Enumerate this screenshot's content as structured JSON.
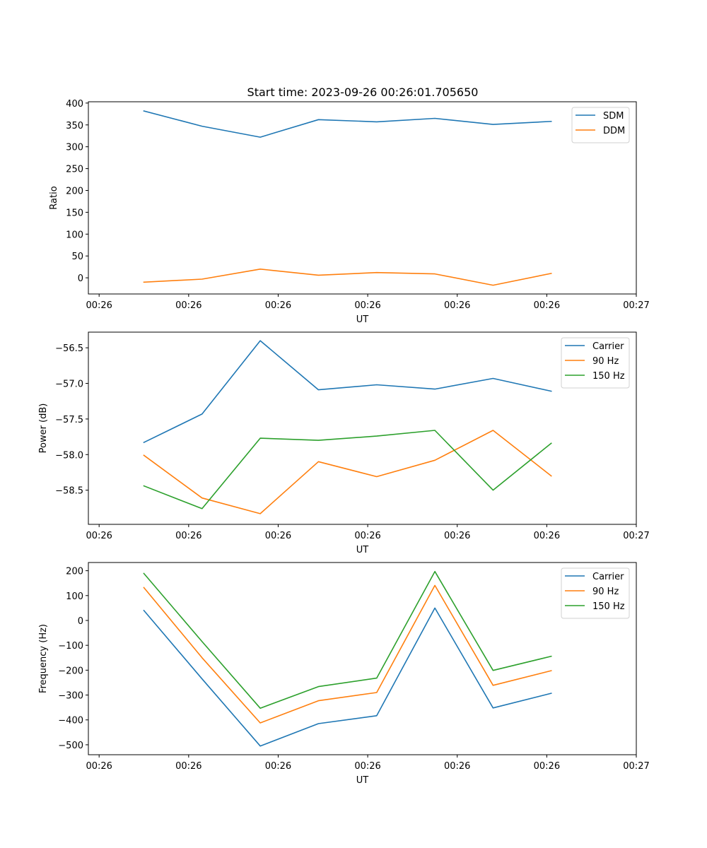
{
  "title": "Start time: 2023-09-26 00:26:01.705650",
  "colors": {
    "blue": "#1f77b4",
    "orange": "#ff7f0e",
    "green": "#2ca02c"
  },
  "chart_data": [
    {
      "type": "line",
      "xlabel": "UT",
      "ylabel": "Ratio",
      "xlim": [
        -0.12,
        6.0
      ],
      "ylim": [
        -37,
        403
      ],
      "yticks": [
        0,
        50,
        100,
        150,
        200,
        250,
        300,
        350,
        400
      ],
      "ytick_labels": [
        "0",
        "50",
        "100",
        "150",
        "200",
        "250",
        "300",
        "350",
        "400"
      ],
      "xticks": [
        0,
        1,
        2,
        3,
        4,
        5,
        6
      ],
      "xtick_labels": [
        "00:26",
        "00:26",
        "00:26",
        "00:26",
        "00:26",
        "00:26",
        "00:27"
      ],
      "x": [
        0.5,
        1.15,
        1.8,
        2.45,
        3.1,
        3.75,
        4.4,
        5.05
      ],
      "legend": "top-right",
      "series": [
        {
          "name": "SDM",
          "color": "#1f77b4",
          "values": [
            382,
            347,
            322,
            362,
            357,
            365,
            351,
            358
          ]
        },
        {
          "name": "DDM",
          "color": "#ff7f0e",
          "values": [
            -10,
            -3,
            20,
            6,
            12,
            9,
            -17,
            10
          ]
        }
      ]
    },
    {
      "type": "line",
      "xlabel": "UT",
      "ylabel": "Power (dB)",
      "xlim": [
        -0.12,
        6.0
      ],
      "ylim": [
        -58.98,
        -56.28
      ],
      "yticks": [
        -58.5,
        -58.0,
        -57.5,
        -57.0,
        -56.5
      ],
      "ytick_labels": [
        "−58.5",
        "−58.0",
        "−57.5",
        "−57.0",
        "−56.5"
      ],
      "xticks": [
        0,
        1,
        2,
        3,
        4,
        5,
        6
      ],
      "xtick_labels": [
        "00:26",
        "00:26",
        "00:26",
        "00:26",
        "00:26",
        "00:26",
        "00:27"
      ],
      "x": [
        0.5,
        1.15,
        1.8,
        2.45,
        3.1,
        3.75,
        4.4,
        5.05
      ],
      "legend": "top-right",
      "series": [
        {
          "name": "Carrier",
          "color": "#1f77b4",
          "values": [
            -57.83,
            -57.43,
            -56.4,
            -57.09,
            -57.02,
            -57.08,
            -56.93,
            -57.11
          ]
        },
        {
          "name": "90 Hz",
          "color": "#ff7f0e",
          "values": [
            -58.01,
            -58.61,
            -58.83,
            -58.1,
            -58.31,
            -58.08,
            -57.66,
            -58.3
          ]
        },
        {
          "name": "150 Hz",
          "color": "#2ca02c",
          "values": [
            -58.44,
            -58.76,
            -57.77,
            -57.8,
            -57.74,
            -57.66,
            -58.5,
            -57.84
          ]
        }
      ]
    },
    {
      "type": "line",
      "xlabel": "UT",
      "ylabel": "Frequency (Hz)",
      "xlim": [
        -0.12,
        6.0
      ],
      "ylim": [
        -540,
        233
      ],
      "yticks": [
        -500,
        -400,
        -300,
        -200,
        -100,
        0,
        100,
        200
      ],
      "ytick_labels": [
        "−500",
        "−400",
        "−300",
        "−200",
        "−100",
        "0",
        "100",
        "200"
      ],
      "xticks": [
        0,
        1,
        2,
        3,
        4,
        5,
        6
      ],
      "xtick_labels": [
        "00:26",
        "00:26",
        "00:26",
        "00:26",
        "00:26",
        "00:26",
        "00:27"
      ],
      "x": [
        0.5,
        1.15,
        1.8,
        2.45,
        3.1,
        3.75,
        4.4,
        5.05
      ],
      "legend": "top-right",
      "series": [
        {
          "name": "Carrier",
          "color": "#1f77b4",
          "values": [
            40,
            -235,
            -505,
            -415,
            -383,
            50,
            -352,
            -293
          ]
        },
        {
          "name": "90 Hz",
          "color": "#ff7f0e",
          "values": [
            132,
            -150,
            -412,
            -323,
            -290,
            141,
            -261,
            -202
          ]
        },
        {
          "name": "150 Hz",
          "color": "#2ca02c",
          "values": [
            189,
            -85,
            -353,
            -266,
            -232,
            197,
            -201,
            -144
          ]
        }
      ]
    }
  ]
}
